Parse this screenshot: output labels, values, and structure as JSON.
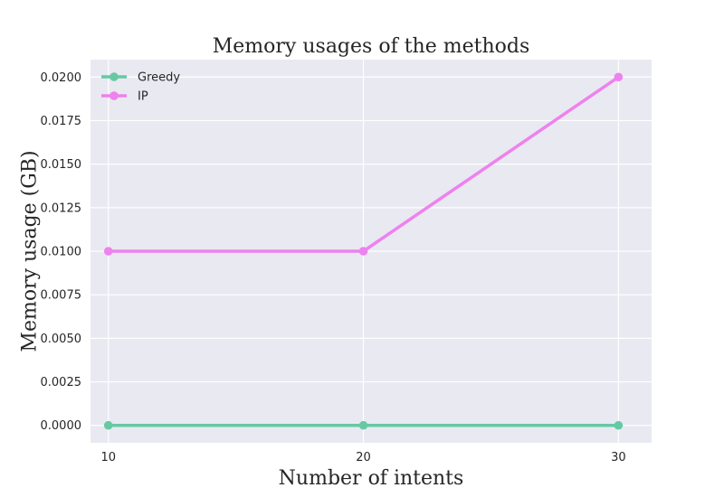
{
  "chart_data": {
    "type": "line",
    "title": "Memory usages of the methods",
    "xlabel": "Number of intents",
    "ylabel": "Memory usage (GB)",
    "x": [
      10,
      20,
      30
    ],
    "x_ticks": [
      "10",
      "20",
      "30"
    ],
    "y_ticks": [
      "0.0000",
      "0.0025",
      "0.0050",
      "0.0075",
      "0.0100",
      "0.0125",
      "0.0150",
      "0.0175",
      "0.0200"
    ],
    "xlim": [
      9.3,
      31.3
    ],
    "ylim": [
      -0.001,
      0.021
    ],
    "grid": true,
    "legend_position": "top-left",
    "series": [
      {
        "name": "Greedy",
        "color": "#66c9a4",
        "values": [
          0.0,
          0.0,
          0.0
        ]
      },
      {
        "name": "IP",
        "color": "#ee82ee",
        "values": [
          0.01,
          0.01,
          0.02
        ]
      }
    ]
  },
  "colors": {
    "plot_background": "#e9e9f2",
    "grid": "#ffffff",
    "text": "#262626"
  }
}
